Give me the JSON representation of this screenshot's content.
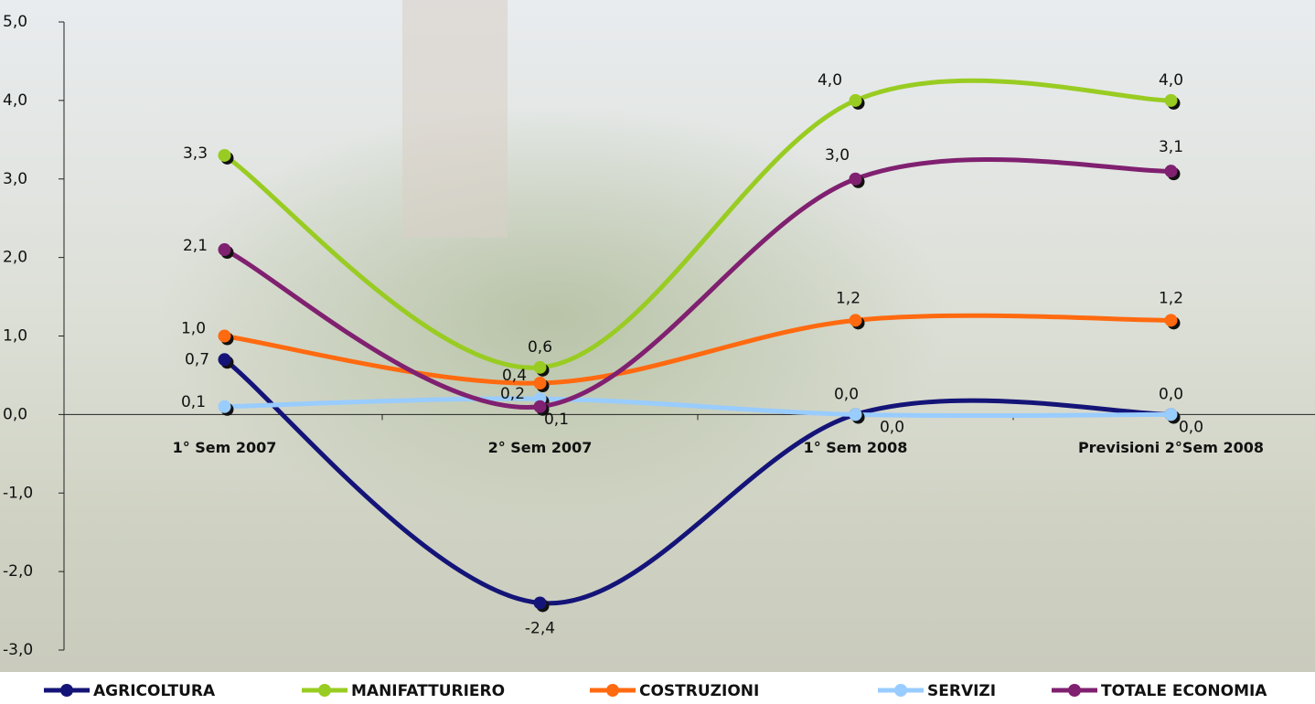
{
  "chart_data": {
    "type": "line",
    "categories": [
      "1° Sem 2007",
      "2° Sem 2007",
      "1° Sem 2008",
      "Previsioni 2°Sem 2008"
    ],
    "series": [
      {
        "name": "AGRICOLTURA",
        "color": "#141478",
        "values": [
          0.7,
          -2.4,
          0.0,
          0.0
        ],
        "value_labels": [
          "0,7",
          "-2,4",
          "0,0",
          "0,0"
        ]
      },
      {
        "name": "MANIFATTURIERO",
        "color": "#99cc22",
        "values": [
          3.3,
          0.6,
          4.0,
          4.0
        ],
        "value_labels": [
          "3,3",
          "0,6",
          "4,0",
          "4,0"
        ]
      },
      {
        "name": "COSTRUZIONI",
        "color": "#ff6a10",
        "values": [
          1.0,
          0.4,
          1.2,
          1.2
        ],
        "value_labels": [
          "1,0",
          "0,4",
          "1,2",
          "1,2"
        ]
      },
      {
        "name": "SERVIZI",
        "color": "#99ccff",
        "values": [
          0.1,
          0.2,
          0.0,
          0.0
        ],
        "value_labels": [
          "0,1",
          "0,2",
          "0,0",
          "0,0"
        ]
      },
      {
        "name": "TOTALE ECONOMIA",
        "color": "#802070",
        "values": [
          2.1,
          0.1,
          3.0,
          3.1
        ],
        "value_labels": [
          "2,1",
          "0,1",
          "3,0",
          "3,1"
        ]
      }
    ],
    "ylim": [
      -3,
      5
    ],
    "yticks": [
      {
        "value": -3,
        "label": "-3,0"
      },
      {
        "value": -2,
        "label": "-2,0"
      },
      {
        "value": -1,
        "label": "-1,0"
      },
      {
        "value": 0,
        "label": "0,0"
      },
      {
        "value": 1,
        "label": "1,0"
      },
      {
        "value": 2,
        "label": "2,0"
      },
      {
        "value": 3,
        "label": "3,0"
      },
      {
        "value": 4,
        "label": "4,0"
      },
      {
        "value": 5,
        "label": "5,0"
      }
    ],
    "smooth": true,
    "legend": "bottom"
  }
}
